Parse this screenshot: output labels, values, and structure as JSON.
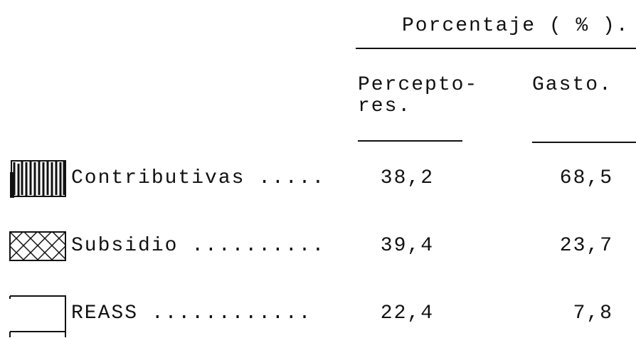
{
  "header": {
    "title": "Porcentaje ( % ).",
    "columns": [
      "Percepto-\nres.",
      "Gasto."
    ]
  },
  "table": {
    "rows": [
      [
        "Contributivas .....",
        "38,2",
        "68,5"
      ],
      [
        "Subsidio ..........",
        "39,4",
        "23,7"
      ],
      [
        "REASS ............",
        "22,4",
        "7,8"
      ]
    ]
  }
}
